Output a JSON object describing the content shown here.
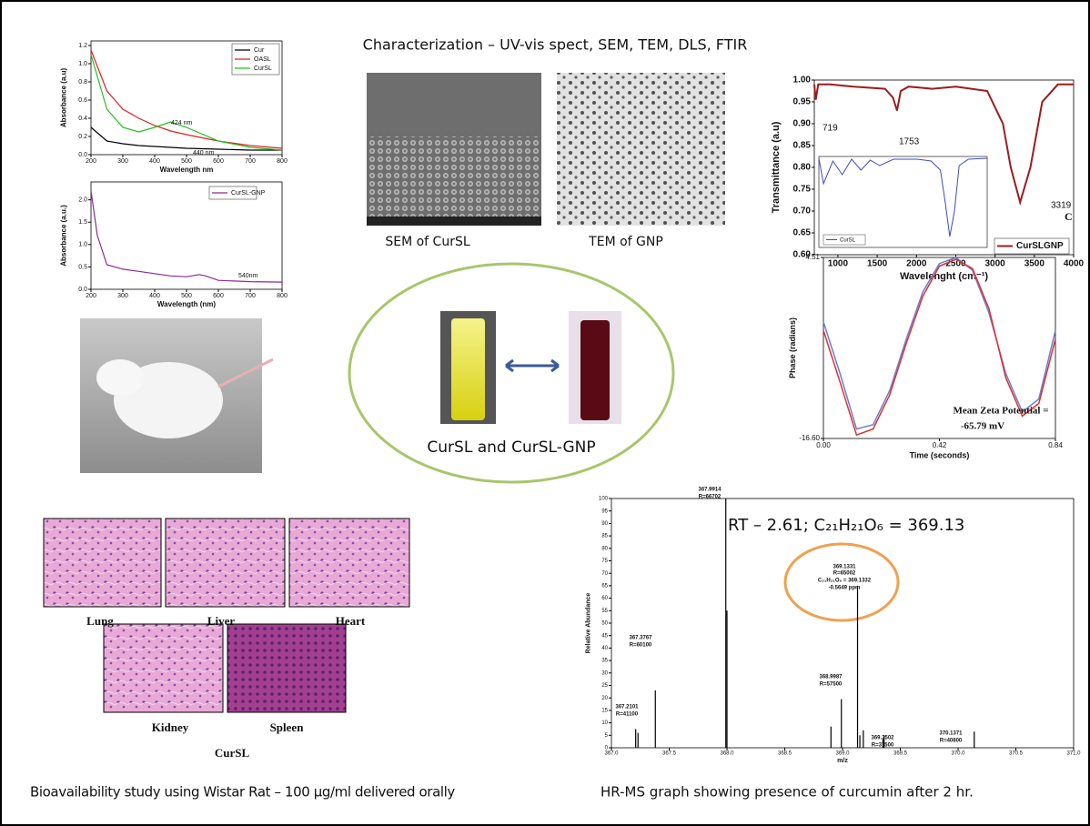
{
  "title": "Characterization – UV-vis spect, SEM, TEM, DLS, FTIR",
  "sem_caption": "SEM of CurSL",
  "tem_caption": "TEM of GNP",
  "vial_caption": "CurSL and CurSL-GNP",
  "histology": {
    "labels": [
      "Lung",
      "Liver",
      "Heart",
      "Kidney",
      "Spleen"
    ],
    "group": "CurSL"
  },
  "bioavailability_caption": "Bioavailability study using Wistar Rat – 100 µg/ml delivered orally",
  "hrms_caption": "HR-MS graph showing presence of curcumin after 2 hr.",
  "rt_label": "RT – 2.61; C₂₁H₂₁O₆ = 369.13",
  "chart_data": [
    {
      "type": "line",
      "xlabel": "Wavelength nm",
      "ylabel": "Absorbance (a.u)",
      "x": [
        200,
        250,
        300,
        350,
        400,
        450,
        500,
        600,
        700,
        800
      ],
      "series": [
        {
          "name": "Cur",
          "color": "#000000",
          "values": [
            0.3,
            0.15,
            0.12,
            0.1,
            0.09,
            0.08,
            0.07,
            0.06,
            0.05,
            0.05
          ]
        },
        {
          "name": "OASL",
          "color": "#e02020",
          "values": [
            1.15,
            0.7,
            0.5,
            0.4,
            0.32,
            0.26,
            0.22,
            0.15,
            0.1,
            0.07
          ]
        },
        {
          "name": "CurSL",
          "color": "#20c020",
          "values": [
            1.1,
            0.5,
            0.3,
            0.25,
            0.3,
            0.36,
            0.3,
            0.15,
            0.08,
            0.05
          ]
        }
      ],
      "xlim": [
        200,
        800
      ],
      "xticks": [
        200,
        300,
        400,
        500,
        600,
        700,
        800
      ],
      "ylim": [
        0,
        1.25
      ],
      "yticks": [
        {
          "value": 0,
          "label": "0.0"
        },
        0.2,
        0.4,
        0.6,
        0.8,
        {
          "value": 1,
          "label": "1.0"
        },
        1.2
      ],
      "annotations": [
        "424 nm",
        "440 nm"
      ]
    },
    {
      "type": "line",
      "xlabel": "Wavelength (nm)",
      "ylabel": "Absorbance (a.u.)",
      "x": [
        200,
        220,
        250,
        300,
        350,
        400,
        450,
        500,
        540,
        560,
        600,
        700,
        800
      ],
      "series": [
        {
          "name": "CurSL-GNP",
          "color": "#8e2a8e",
          "values": [
            2.2,
            1.2,
            0.55,
            0.45,
            0.4,
            0.35,
            0.3,
            0.28,
            0.33,
            0.3,
            0.2,
            0.17,
            0.16
          ]
        }
      ],
      "xlim": [
        200,
        800
      ],
      "xticks": [
        200,
        300,
        400,
        500,
        600,
        700,
        800
      ],
      "ylim": [
        0,
        2.4
      ],
      "yticks": [
        {
          "value": 0,
          "label": "0.0"
        },
        0.5,
        {
          "value": 1,
          "label": "1.0"
        },
        1.5,
        {
          "value": 2,
          "label": "2.0"
        }
      ],
      "annotations": [
        "540nm"
      ]
    },
    {
      "type": "line",
      "xlabel": "Wavelenght (cm⁻¹)",
      "ylabel": "Transmittance (a.u)",
      "x": [
        700,
        719,
        750,
        900,
        1200,
        1600,
        1700,
        1753,
        1800,
        1900,
        2200,
        2500,
        2900,
        3100,
        3200,
        3319,
        3450,
        3600,
        3800,
        4000
      ],
      "series": [
        {
          "name": "CurSLGNP",
          "color": "#9b1c1c",
          "values": [
            0.99,
            0.955,
            0.99,
            0.99,
            0.985,
            0.98,
            0.96,
            0.93,
            0.975,
            0.985,
            0.98,
            0.985,
            0.975,
            0.9,
            0.8,
            0.72,
            0.8,
            0.95,
            0.99,
            0.99
          ]
        }
      ],
      "xlim": [
        700,
        4000
      ],
      "xticks": [
        1000,
        1500,
        2000,
        2500,
        3000,
        3500,
        4000
      ],
      "ylim": [
        0.6,
        1.0
      ],
      "yticks": [
        {
          "value": 0.6,
          "label": "0.60"
        },
        0.65,
        {
          "value": 0.7,
          "label": "0.70"
        },
        0.75,
        {
          "value": 0.8,
          "label": "0.80"
        },
        0.85,
        {
          "value": 0.9,
          "label": "0.90"
        },
        0.95,
        {
          "value": 1,
          "label": "1.00"
        }
      ],
      "annotations": [
        "719",
        "1753",
        "3319",
        "C"
      ],
      "inset": {
        "name": "CurSL",
        "color": "#3b4cc0",
        "x": [
          400,
          500,
          700,
          900,
          1100,
          1300,
          1500,
          1700,
          2000,
          2500,
          2800,
          3000,
          3100,
          3200,
          3300,
          3400,
          3600,
          4000
        ],
        "values": [
          0.98,
          0.7,
          0.95,
          0.8,
          0.97,
          0.85,
          0.96,
          0.9,
          0.97,
          0.97,
          0.95,
          0.85,
          0.5,
          0.12,
          0.4,
          0.9,
          0.97,
          0.98
        ],
        "xlim": [
          400,
          4000
        ],
        "ylim": [
          0,
          1
        ]
      }
    },
    {
      "type": "line",
      "xlabel": "Time (seconds)",
      "ylabel": "Phase (radians)",
      "x": [
        0,
        0.06,
        0.12,
        0.18,
        0.24,
        0.3,
        0.36,
        0.42,
        0.48,
        0.54,
        0.6,
        0.66,
        0.72,
        0.78,
        0.84
      ],
      "series": [
        {
          "name": null,
          "color": "#6a7fd0",
          "values": [
            -3,
            -9,
            -15.5,
            -15,
            -11,
            -5,
            0.5,
            3.8,
            4.5,
            3,
            -2,
            -9,
            -13.5,
            -12,
            -4
          ]
        },
        {
          "name": null,
          "color": "#e03030",
          "values": [
            -4,
            -10,
            -16.2,
            -15.5,
            -11.5,
            -5.5,
            0,
            3.5,
            4.3,
            3.2,
            -1.5,
            -9.5,
            -14,
            -12.5,
            -5
          ]
        }
      ],
      "xlim": [
        0,
        0.84
      ],
      "xticks": [
        {
          "value": 0,
          "label": "0.00"
        },
        0.42,
        0.84
      ],
      "ylim": [
        -16.6,
        4.51
      ],
      "yticks": [
        {
          "value": -16.6,
          "label": "-16.60"
        },
        4.51
      ],
      "annotations": [
        "Mean Zeta Potential =",
        "-65.79 mV"
      ]
    },
    {
      "type": "bar",
      "xlabel": "m/z",
      "ylabel": "Relative Abundance",
      "x": [
        367.21,
        367.23,
        367.38,
        367.99,
        368.0,
        368.9,
        368.99,
        369.13,
        369.15,
        369.18,
        369.35,
        369.36,
        370.14
      ],
      "values": [
        7.5,
        6,
        23,
        100,
        55,
        8.5,
        19.5,
        65,
        5,
        7,
        3.5,
        5,
        6.5
      ],
      "color": "#000000",
      "xlim": [
        367,
        371
      ],
      "xticks": [
        {
          "value": 367,
          "label": "367.0"
        },
        367.5,
        {
          "value": 368,
          "label": "368.0"
        },
        368.5,
        {
          "value": 369,
          "label": "369.0"
        },
        369.5,
        {
          "value": 370,
          "label": "370.0"
        },
        370.5,
        {
          "value": 371,
          "label": "371.0"
        }
      ],
      "ylim": [
        0,
        100
      ],
      "yticks": [
        0,
        5,
        10,
        15,
        20,
        25,
        30,
        35,
        40,
        45,
        50,
        55,
        60,
        65,
        70,
        75,
        80,
        85,
        90,
        95,
        100
      ],
      "annotations": [
        "367.2101",
        "R=41100",
        "367.3767",
        "R=60100",
        "367.9914",
        "R=66702",
        "368.9987",
        "R=57500",
        "369.1331",
        "R=65002",
        "C₂₁H₂₁O₆ = 369.1332",
        "-0.5649 ppm",
        "369.3502",
        "R=37500",
        "370.1371",
        "R=40800"
      ]
    }
  ]
}
